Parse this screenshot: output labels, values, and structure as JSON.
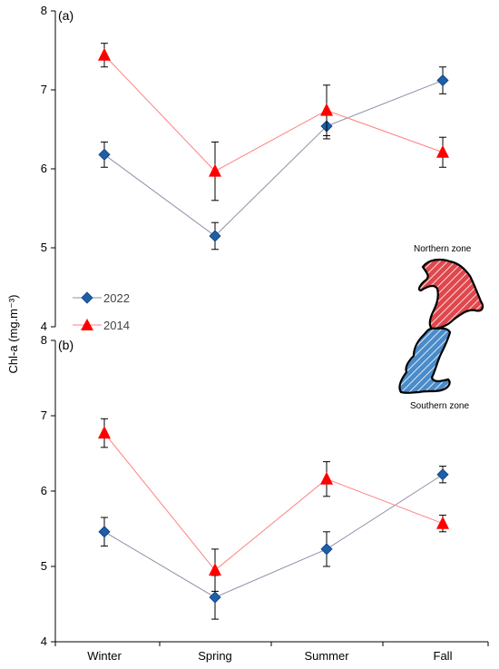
{
  "chart_data": {
    "type": "line",
    "ylabel": "Chl-a (mg.m⁻³)",
    "categories": [
      "Winter",
      "Spring",
      "Summer",
      "Fall"
    ],
    "legend": {
      "placement": "left-middle",
      "entries": [
        {
          "name": "2022",
          "marker": "diamond",
          "color": "#1f5fa8"
        },
        {
          "name": "2014",
          "marker": "triangle",
          "color": "#ff0000"
        }
      ]
    },
    "inset_map": {
      "north_label": "Northern zone",
      "south_label": "Southern zone",
      "north_fill": "#e0474c",
      "south_fill": "#4a8bc9"
    },
    "panels": [
      {
        "label": "(a)",
        "ylim": [
          4,
          8
        ],
        "yticks": [
          "4",
          "5",
          "6",
          "7",
          "8"
        ],
        "series": [
          {
            "name": "2022",
            "color": "#1f5fa8",
            "line_color": "#8a8fa8",
            "values": [
              6.18,
              5.15,
              6.54,
              7.12
            ],
            "errors": [
              0.16,
              0.17,
              0.16,
              0.17
            ]
          },
          {
            "name": "2014",
            "color": "#ff0000",
            "line_color": "#ff8080",
            "values": [
              7.44,
              5.97,
              6.74,
              6.21
            ],
            "errors": [
              0.15,
              0.37,
              0.32,
              0.19
            ]
          }
        ]
      },
      {
        "label": "(b)",
        "ylim": [
          4,
          8
        ],
        "yticks": [
          "4",
          "5",
          "6",
          "7",
          "8"
        ],
        "series": [
          {
            "name": "2022",
            "color": "#1f5fa8",
            "line_color": "#8a8fa8",
            "values": [
              5.46,
              4.59,
              5.23,
              6.22
            ],
            "errors": [
              0.19,
              0.29,
              0.23,
              0.11
            ]
          },
          {
            "name": "2014",
            "color": "#ff0000",
            "line_color": "#ff8080",
            "values": [
              6.77,
              4.95,
              6.16,
              5.57
            ],
            "errors": [
              0.19,
              0.28,
              0.23,
              0.11
            ]
          }
        ]
      }
    ]
  }
}
